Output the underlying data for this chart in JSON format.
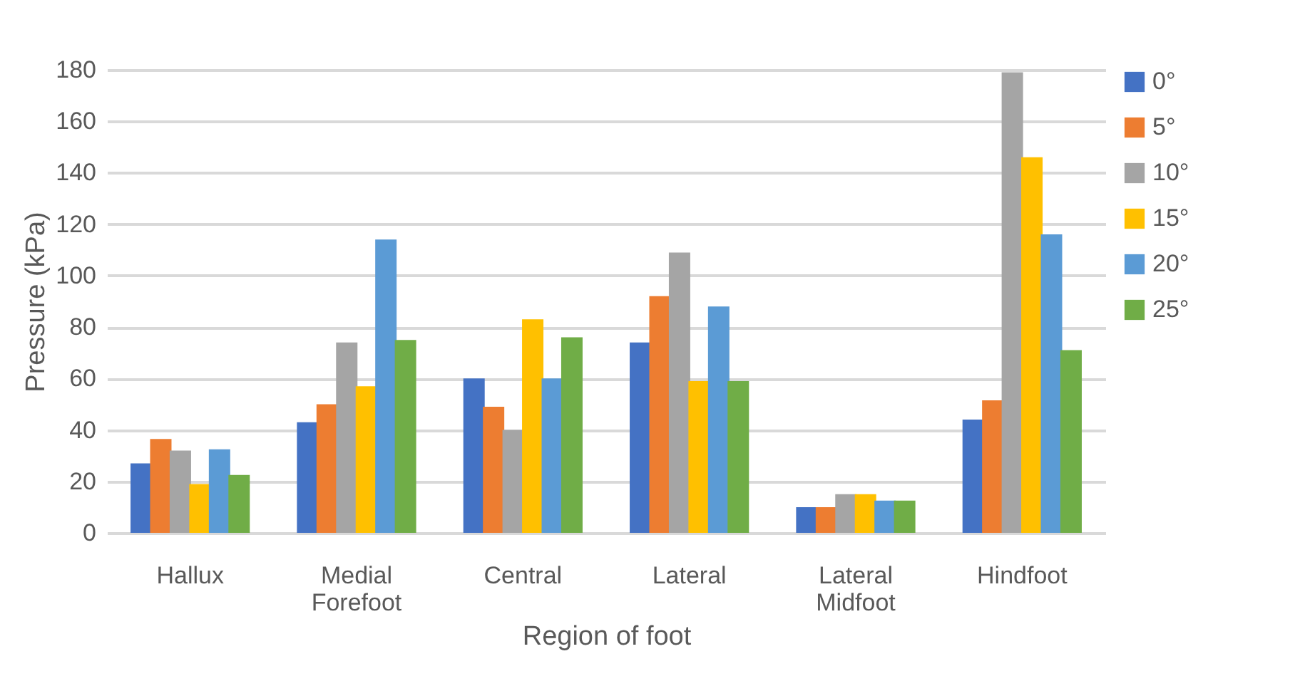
{
  "chart_data": {
    "type": "bar",
    "xlabel": "Region of foot",
    "ylabel": "Pressure (kPa)",
    "categories": [
      "Hallux",
      "Medial Forefoot",
      "Central",
      "Lateral",
      "Lateral Midfoot",
      "Hindfoot"
    ],
    "series": [
      {
        "name": "0°",
        "color": "#4472c4",
        "values": [
          27,
          43,
          60,
          74,
          10,
          44
        ]
      },
      {
        "name": "5°",
        "color": "#ed7d31",
        "values": [
          36.5,
          50,
          49,
          92,
          10,
          51.5
        ]
      },
      {
        "name": "10°",
        "color": "#a5a5a5",
        "values": [
          32,
          74,
          40,
          109,
          15,
          179
        ]
      },
      {
        "name": "15°",
        "color": "#ffc000",
        "values": [
          19,
          57,
          83,
          59,
          15,
          146
        ]
      },
      {
        "name": "20°",
        "color": "#5b9bd5",
        "values": [
          32.5,
          114,
          60,
          88,
          12.5,
          116
        ]
      },
      {
        "name": "25°",
        "color": "#70ad47",
        "values": [
          22.5,
          75,
          76,
          59,
          12.5,
          71
        ]
      }
    ],
    "ylim": [
      0,
      180
    ],
    "yticks": [
      0,
      20,
      40,
      60,
      80,
      100,
      120,
      140,
      160,
      180
    ],
    "grid": "y",
    "legend": "right"
  }
}
